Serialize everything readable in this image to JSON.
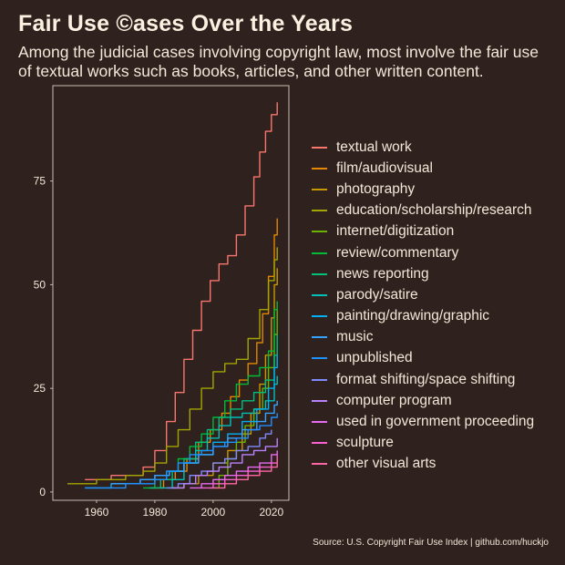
{
  "title": "Fair Use ©ases Over the Years",
  "subtitle": "Among the judicial cases involving copyright law, most involve the fair use of textual works such as books, articles, and other written content.",
  "caption": "Source: U.S. Copyright Fair Use Index | github.com/huckjo",
  "colors": {
    "background": "#2f211e",
    "panel_border": "#c9bdb0",
    "text": "#f2e8d8"
  },
  "chart_data": {
    "type": "line",
    "title": "Fair Use ©ases Over the Years",
    "xlabel": "",
    "ylabel": "",
    "xlim": [
      1945,
      2026
    ],
    "ylim": [
      -2,
      98
    ],
    "x_ticks": [
      1960,
      1980,
      2000,
      2020
    ],
    "y_ticks": [
      0,
      25,
      50,
      75
    ],
    "grid": false,
    "legend_position": "right",
    "series": [
      {
        "name": "textual work",
        "color": "#f8766d",
        "x": [
          1956,
          1965,
          1976,
          1980,
          1984,
          1987,
          1990,
          1993,
          1996,
          1999,
          2002,
          2005,
          2008,
          2011,
          2014,
          2016,
          2018,
          2020,
          2022
        ],
        "y": [
          3,
          4,
          6,
          10,
          17,
          24,
          32,
          39,
          46,
          51,
          55,
          57,
          62,
          69,
          76,
          82,
          87,
          91,
          94
        ]
      },
      {
        "name": "film/audiovisual",
        "color": "#e58700",
        "x": [
          1979,
          1983,
          1987,
          1991,
          1995,
          1999,
          2003,
          2006,
          2009,
          2012,
          2015,
          2017,
          2019,
          2021,
          2022
        ],
        "y": [
          1,
          3,
          5,
          8,
          12,
          15,
          19,
          23,
          27,
          31,
          36,
          43,
          52,
          62,
          66
        ]
      },
      {
        "name": "photography",
        "color": "#c99800",
        "x": [
          1985,
          1990,
          1995,
          2000,
          2005,
          2010,
          2013,
          2016,
          2018,
          2020,
          2021,
          2022
        ],
        "y": [
          1,
          2,
          4,
          7,
          10,
          14,
          19,
          26,
          33,
          42,
          50,
          54
        ]
      },
      {
        "name": "education/scholarship/research",
        "color": "#a3a500",
        "x": [
          1950,
          1960,
          1970,
          1976,
          1980,
          1984,
          1988,
          1992,
          1996,
          2000,
          2004,
          2008,
          2012,
          2016,
          2019,
          2021,
          2022
        ],
        "y": [
          2,
          3,
          4,
          5,
          7,
          11,
          15,
          20,
          25,
          29,
          31,
          32,
          37,
          44,
          51,
          56,
          59
        ]
      },
      {
        "name": "internet/digitization",
        "color": "#6bb100",
        "x": [
          1999,
          2002,
          2005,
          2008,
          2011,
          2014,
          2017,
          2019,
          2021,
          2022
        ],
        "y": [
          1,
          4,
          8,
          12,
          16,
          20,
          25,
          30,
          38,
          44
        ]
      },
      {
        "name": "review/commentary",
        "color": "#00ba38",
        "x": [
          1976,
          1980,
          1984,
          1988,
          1992,
          1996,
          2000,
          2004,
          2008,
          2012,
          2016,
          2019,
          2021,
          2022
        ],
        "y": [
          1,
          3,
          5,
          8,
          11,
          14,
          18,
          22,
          26,
          28,
          30,
          34,
          44,
          46
        ]
      },
      {
        "name": "news reporting",
        "color": "#00bf7d",
        "x": [
          1978,
          1982,
          1986,
          1990,
          1994,
          1998,
          2002,
          2006,
          2010,
          2014,
          2018,
          2021,
          2022
        ],
        "y": [
          1,
          3,
          5,
          8,
          12,
          15,
          18,
          20,
          22,
          24,
          27,
          33,
          38
        ]
      },
      {
        "name": "parody/satire",
        "color": "#00c0b8",
        "x": [
          1982,
          1986,
          1990,
          1994,
          1998,
          2002,
          2006,
          2010,
          2014,
          2018,
          2021,
          2022
        ],
        "y": [
          1,
          3,
          7,
          10,
          13,
          16,
          18,
          19,
          20,
          22,
          26,
          28
        ]
      },
      {
        "name": "painting/drawing/graphic",
        "color": "#00b0f6",
        "x": [
          1956,
          1965,
          1975,
          1980,
          1985,
          1990,
          1995,
          2000,
          2005,
          2010,
          2015,
          2019,
          2021,
          2022
        ],
        "y": [
          1,
          2,
          3,
          4,
          5,
          7,
          9,
          12,
          14,
          17,
          20,
          25,
          30,
          33
        ]
      },
      {
        "name": "music",
        "color": "#35a2ff",
        "x": [
          1965,
          1975,
          1980,
          1985,
          1990,
          1995,
          2000,
          2005,
          2010,
          2015,
          2018,
          2021,
          2022
        ],
        "y": [
          2,
          3,
          4,
          5,
          7,
          9,
          11,
          13,
          15,
          17,
          19,
          21,
          22
        ]
      },
      {
        "name": "unpublished",
        "color": "#1e90ff",
        "x": [
          1956,
          1970,
          1980,
          1984,
          1988,
          1992,
          1996,
          2000,
          2004,
          2008,
          2012,
          2016,
          2020,
          2022
        ],
        "y": [
          1,
          2,
          3,
          5,
          7,
          9,
          10,
          11,
          12,
          13,
          15,
          16,
          18,
          19
        ]
      },
      {
        "name": "format shifting/space shifting",
        "color": "#7e8aff",
        "x": [
          1984,
          1988,
          1992,
          1996,
          2000,
          2004,
          2008,
          2012,
          2016,
          2018,
          2020
        ],
        "y": [
          1,
          2,
          4,
          5,
          7,
          8,
          10,
          11,
          13,
          14,
          15
        ]
      },
      {
        "name": "computer program",
        "color": "#b983ff",
        "x": [
          1986,
          1990,
          1994,
          1998,
          2002,
          2006,
          2010,
          2014,
          2018,
          2022
        ],
        "y": [
          1,
          2,
          4,
          5,
          6,
          7,
          9,
          10,
          11,
          13
        ]
      },
      {
        "name": "used in government proceeding",
        "color": "#e76bf3",
        "x": [
          1992,
          1996,
          2000,
          2004,
          2008,
          2012,
          2016,
          2020,
          2022
        ],
        "y": [
          1,
          2,
          3,
          4,
          5,
          6,
          7,
          9,
          10
        ]
      },
      {
        "name": "sculpture",
        "color": "#fd61d1",
        "x": [
          1996,
          2000,
          2004,
          2008,
          2012,
          2016,
          2020,
          2022
        ],
        "y": [
          1,
          2,
          3,
          4,
          5,
          6,
          7,
          9
        ]
      },
      {
        "name": "other visual arts",
        "color": "#ff67a4",
        "x": [
          2000,
          2004,
          2008,
          2012,
          2016,
          2020,
          2022
        ],
        "y": [
          1,
          2,
          3,
          4,
          5,
          6,
          8
        ]
      }
    ]
  }
}
